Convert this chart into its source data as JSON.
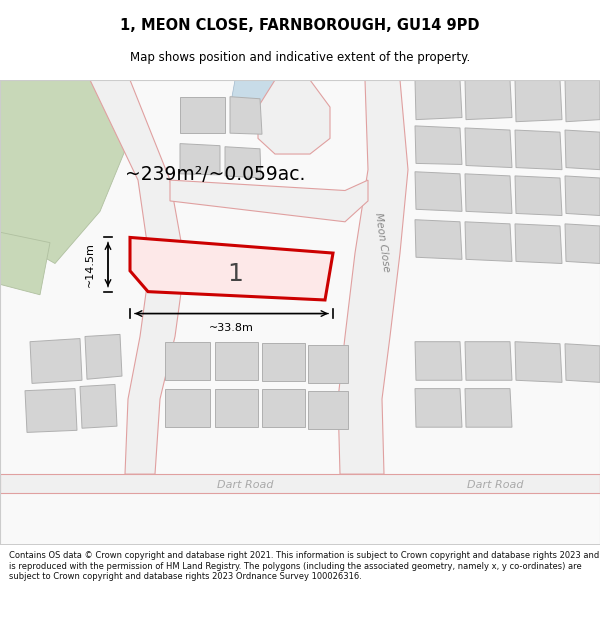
{
  "title_line1": "1, MEON CLOSE, FARNBOROUGH, GU14 9PD",
  "title_line2": "Map shows position and indicative extent of the property.",
  "footer_text": "Contains OS data © Crown copyright and database right 2021. This information is subject to Crown copyright and database rights 2023 and is reproduced with the permission of HM Land Registry. The polygons (including the associated geometry, namely x, y co-ordinates) are subject to Crown copyright and database rights 2023 Ordnance Survey 100026316.",
  "area_label": "~239m²/~0.059ac.",
  "width_label": "~33.8m",
  "height_label": "~14.5m",
  "plot_number": "1",
  "map_bg": "#f8f8f8",
  "road_fill": "#f0f0f0",
  "road_edge": "#e0a0a0",
  "building_fill": "#d4d4d4",
  "building_outline": "#b0b0b0",
  "green_fill": "#c8d8b8",
  "green_outline": "#b0c0a0",
  "highlight_fill": "#fde8e8",
  "highlight_outline": "#cc0000",
  "text_color": "#000000",
  "road_label_color": "#777777",
  "meon_close_label": "Meon Close",
  "dart_road_label1": "Dart Road",
  "dart_road_label2": "Dart Road"
}
